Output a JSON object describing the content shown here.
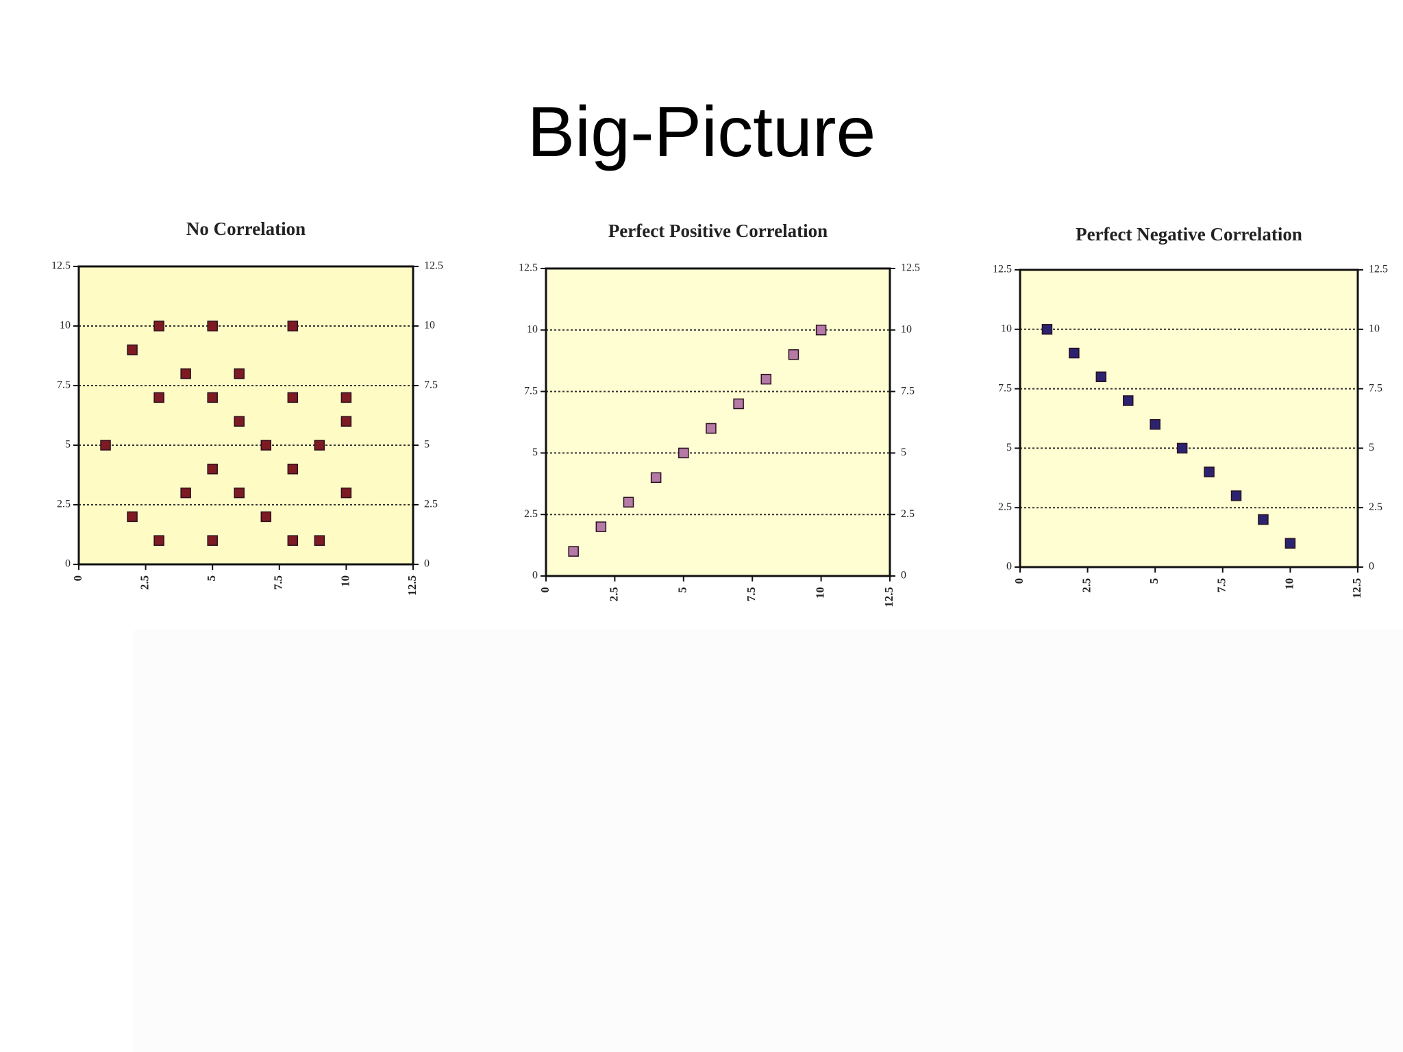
{
  "title": "Big-Picture",
  "chart_data": [
    {
      "type": "scatter",
      "title": "No Correlation",
      "x": [
        3,
        5,
        8,
        2,
        4,
        6,
        3,
        5,
        8,
        10,
        6,
        10,
        1,
        7,
        9,
        5,
        8,
        4,
        6,
        10,
        2,
        7,
        3,
        5,
        8,
        9
      ],
      "values": [
        10,
        10,
        10,
        9,
        8,
        8,
        7,
        7,
        7,
        7,
        6,
        6,
        5,
        5,
        5,
        4,
        4,
        3,
        3,
        3,
        2,
        2,
        1,
        1,
        1,
        1
      ],
      "color": "#7e1a22",
      "xlim": [
        0,
        12.5
      ],
      "xticks": [
        0,
        2.5,
        5,
        7.5,
        10,
        12.5
      ],
      "ylim": [
        0,
        12.5
      ],
      "yticks": [
        0,
        2.5,
        5,
        7.5,
        10,
        12.5
      ],
      "y2lim": [
        0,
        12.5
      ],
      "y2ticks": [
        0,
        2.5,
        5,
        7.5,
        10,
        12.5
      ],
      "grid": true,
      "background": "#fffbc4"
    },
    {
      "type": "scatter",
      "title": "Perfect Positive Correlation",
      "x": [
        1,
        2,
        3,
        4,
        5,
        6,
        7,
        8,
        9,
        10
      ],
      "values": [
        1,
        2,
        3,
        4,
        5,
        6,
        7,
        8,
        9,
        10
      ],
      "color": "#b57aa6",
      "xlim": [
        0,
        12.5
      ],
      "xticks": [
        0,
        2.5,
        5,
        7.5,
        10,
        12.5
      ],
      "ylim": [
        0,
        12.5
      ],
      "yticks": [
        0,
        2.5,
        5,
        7.5,
        10,
        12.5
      ],
      "y2lim": [
        0,
        12.5
      ],
      "y2ticks": [
        0,
        2.5,
        5,
        7.5,
        10,
        12.5
      ],
      "grid": true,
      "background": "#fffdd2"
    },
    {
      "type": "scatter",
      "title": "Perfect Negative Correlation",
      "x": [
        1,
        2,
        3,
        4,
        5,
        6,
        7,
        8,
        9,
        10
      ],
      "values": [
        10,
        9,
        8,
        7,
        6,
        5,
        4,
        3,
        2,
        1
      ],
      "color": "#2b2370",
      "xlim": [
        0,
        12.5
      ],
      "xticks": [
        0,
        2.5,
        5,
        7.5,
        10,
        12.5
      ],
      "ylim": [
        0,
        12.5
      ],
      "yticks": [
        0,
        2.5,
        5,
        7.5,
        10,
        12.5
      ],
      "y2lim": [
        0,
        12.5
      ],
      "y2ticks": [
        0,
        2.5,
        5,
        7.5,
        10,
        12.5
      ],
      "grid": true,
      "background": "#fffdd2"
    }
  ]
}
